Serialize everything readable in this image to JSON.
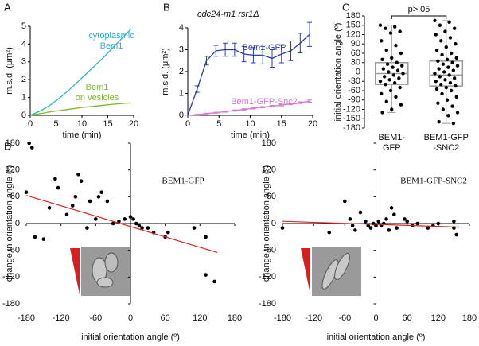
{
  "chart_data": [
    {
      "type": "line",
      "panel": "A",
      "xlabel": "time (min)",
      "ylabel": "m.s.d. (μm²)",
      "xlim": [
        0,
        20
      ],
      "xticks": [
        0,
        5,
        10,
        15,
        20
      ],
      "ylim": [
        0,
        5
      ],
      "yticks": [
        0,
        1,
        2,
        3,
        4,
        5
      ],
      "series": [
        {
          "name": [
            "cytoplasmic",
            "Bem1"
          ],
          "color": "#2bb3c8",
          "x": [
            0,
            2,
            4,
            6,
            8,
            10,
            12,
            14,
            16,
            18,
            19.5
          ],
          "values": [
            0,
            0.25,
            0.6,
            1.05,
            1.55,
            2.1,
            2.65,
            3.2,
            3.8,
            4.4,
            4.85
          ]
        },
        {
          "name": [
            "Bem1",
            "on vesicles"
          ],
          "color": "#7ab829",
          "x": [
            0,
            2,
            4,
            6,
            8,
            10,
            12,
            14,
            16,
            18,
            19.5
          ],
          "values": [
            0,
            0.1,
            0.2,
            0.28,
            0.36,
            0.44,
            0.5,
            0.56,
            0.62,
            0.67,
            0.7
          ]
        }
      ]
    },
    {
      "type": "line",
      "panel": "B",
      "subtitle": "cdc24-m1 rsr1Δ",
      "xlabel": "time (min)",
      "ylabel": "m.s.d. (μm²)",
      "xlim": [
        0,
        20
      ],
      "xticks": [
        0,
        5,
        10,
        15,
        20
      ],
      "ylim": [
        0,
        4
      ],
      "yticks": [
        0,
        1,
        2,
        3,
        4
      ],
      "series": [
        {
          "name": [
            "Bem1-GFP"
          ],
          "color": "#2a3fa8",
          "x": [
            0,
            1.5,
            3,
            4.5,
            6,
            7.5,
            9,
            10.5,
            12,
            13.5,
            15,
            16.5,
            18,
            19.5
          ],
          "values": [
            0,
            1.2,
            2.5,
            2.95,
            3.0,
            3.0,
            2.8,
            2.75,
            2.75,
            2.6,
            2.8,
            2.95,
            3.3,
            3.7
          ],
          "errors": [
            0,
            0.15,
            0.2,
            0.25,
            0.3,
            0.3,
            0.35,
            0.35,
            0.4,
            0.4,
            0.4,
            0.45,
            0.45,
            0.55
          ]
        },
        {
          "name": [
            "Bem1-GFP-Snc2"
          ],
          "color": "#d879d0",
          "x": [
            0,
            1.5,
            3,
            4.5,
            6,
            7.5,
            9,
            10.5,
            12,
            13.5,
            15,
            16.5,
            18,
            19.5
          ],
          "values": [
            0,
            0.03,
            0.08,
            0.12,
            0.17,
            0.22,
            0.27,
            0.32,
            0.37,
            0.42,
            0.47,
            0.52,
            0.58,
            0.65
          ],
          "errors": [
            0,
            0.02,
            0.02,
            0.02,
            0.03,
            0.03,
            0.03,
            0.03,
            0.03,
            0.03,
            0.04,
            0.04,
            0.04,
            0.05
          ]
        }
      ]
    },
    {
      "type": "box",
      "panel": "C",
      "annotation": "p>.05",
      "ylabel": "initial orientation angle (º)",
      "ylim": [
        -180,
        180
      ],
      "yticks": [
        -180,
        -150,
        -120,
        -90,
        -60,
        -30,
        0,
        30,
        60,
        90,
        120,
        150,
        180
      ],
      "categories": [
        [
          "BEM1-",
          "GFP"
        ],
        [
          "BEM1-GFP",
          "-SNC2"
        ]
      ],
      "boxes": [
        {
          "whislo": -130,
          "q1": -40,
          "med": -5,
          "q3": 30,
          "whishi": 150
        },
        {
          "whislo": -165,
          "q1": -45,
          "med": -10,
          "q3": 35,
          "whishi": 165
        }
      ],
      "points": [
        [
          150,
          145,
          140,
          130,
          125,
          100,
          85,
          70,
          60,
          45,
          40,
          30,
          25,
          20,
          15,
          10,
          5,
          0,
          -5,
          -10,
          -15,
          -20,
          -25,
          -30,
          -35,
          -40,
          -50,
          -60,
          -70,
          -80,
          -95,
          -105,
          -120,
          -130
        ],
        [
          165,
          160,
          150,
          140,
          130,
          120,
          110,
          100,
          90,
          80,
          70,
          60,
          55,
          45,
          40,
          35,
          30,
          25,
          20,
          15,
          10,
          5,
          0,
          -5,
          -10,
          -15,
          -20,
          -25,
          -30,
          -35,
          -40,
          -45,
          -50,
          -55,
          -60,
          -70,
          -80,
          -90,
          -100,
          -110,
          -120,
          -130,
          -140,
          -160,
          -165
        ]
      ],
      "color": "#999999"
    },
    {
      "type": "scatter",
      "panel": "D",
      "annotation": "BEM1-GFP",
      "xlabel": "initial orientation angle (º)",
      "ylabel": "change in orientation angle (º)",
      "xlim": [
        -180,
        180
      ],
      "xticks": [
        -180,
        -120,
        -60,
        0,
        60,
        120,
        180
      ],
      "ylim": [
        -180,
        180
      ],
      "yticks": [
        -180,
        -120,
        -60,
        0,
        60,
        120,
        180
      ],
      "x": [
        -175,
        -170,
        -180,
        -165,
        -150,
        -140,
        -130,
        -125,
        -110,
        -100,
        -95,
        -90,
        -85,
        -75,
        -70,
        -60,
        -55,
        -50,
        -40,
        -30,
        -20,
        -10,
        0,
        5,
        10,
        15,
        20,
        30,
        40,
        60,
        65,
        110,
        130,
        130,
        145
      ],
      "values": [
        180,
        170,
        70,
        -30,
        -35,
        35,
        100,
        80,
        20,
        40,
        60,
        110,
        95,
        -10,
        50,
        10,
        60,
        70,
        50,
        0,
        5,
        10,
        15,
        10,
        0,
        -5,
        -10,
        -10,
        -20,
        -30,
        -20,
        -10,
        -30,
        -115,
        -130
      ],
      "fit": {
        "x": [
          -180,
          150
        ],
        "values": [
          63,
          -65
        ],
        "color": "#e02020"
      },
      "color": "#000000"
    },
    {
      "type": "scatter",
      "annotation": "BEM1-GFP-SNC2",
      "xlabel": "initial orientation angle (º)",
      "ylabel": "change in orientation angle (º)",
      "xlim": [
        -180,
        180
      ],
      "xticks": [
        -180,
        -120,
        -60,
        0,
        60,
        120,
        180
      ],
      "ylim": [
        -180,
        180
      ],
      "yticks": [
        -180,
        -120,
        -60,
        0,
        60,
        120,
        180
      ],
      "x": [
        -180,
        -90,
        -60,
        -50,
        -45,
        -40,
        -30,
        -20,
        -15,
        -10,
        -5,
        0,
        5,
        10,
        15,
        20,
        25,
        30,
        35,
        40,
        55,
        60,
        70,
        80,
        100,
        110,
        120,
        150,
        150,
        155
      ],
      "values": [
        -10,
        -20,
        50,
        10,
        -5,
        -15,
        25,
        5,
        -5,
        -10,
        0,
        -5,
        5,
        -5,
        0,
        10,
        -15,
        35,
        20,
        -10,
        10,
        5,
        -5,
        0,
        -10,
        -5,
        0,
        -10,
        5,
        -25
      ],
      "fit": {
        "x": [
          -180,
          160
        ],
        "values": [
          5,
          -8
        ],
        "color": "#e02020"
      },
      "color": "#000000"
    }
  ]
}
